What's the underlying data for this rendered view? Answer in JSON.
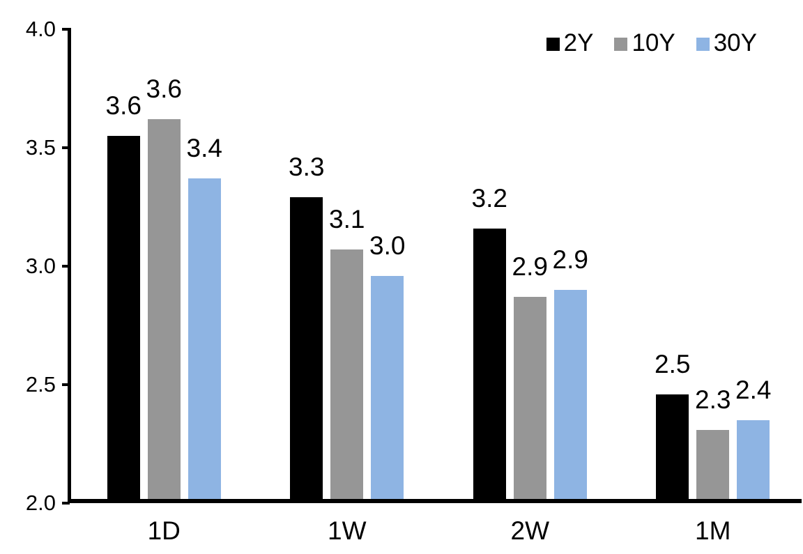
{
  "chart_data": {
    "type": "bar",
    "title": "",
    "xlabel": "",
    "ylabel": "",
    "categories": [
      "1D",
      "1W",
      "2W",
      "1M"
    ],
    "series": [
      {
        "name": "2Y",
        "color": "#000000",
        "values": [
          3.55,
          3.29,
          3.16,
          2.46
        ],
        "labels": [
          "3.6",
          "3.3",
          "3.2",
          "2.5"
        ]
      },
      {
        "name": "10Y",
        "color": "#969696",
        "values": [
          3.62,
          3.07,
          2.87,
          2.31
        ],
        "labels": [
          "3.6",
          "3.1",
          "2.9",
          "2.3"
        ]
      },
      {
        "name": "30Y",
        "color": "#8EB4E3",
        "values": [
          3.37,
          2.96,
          2.9,
          2.35
        ],
        "labels": [
          "3.4",
          "3.0",
          "2.9",
          "2.4"
        ]
      }
    ],
    "ylim": [
      2.0,
      4.0
    ],
    "yticks": [
      {
        "value": 4.0,
        "label": "4.0"
      },
      {
        "value": 3.5,
        "label": "3.5"
      },
      {
        "value": 3.0,
        "label": "3.0"
      },
      {
        "value": 2.5,
        "label": "2.5"
      },
      {
        "value": 2.0,
        "label": "2.0"
      }
    ],
    "grid": false,
    "legend_position": "top-right",
    "background_color": "#FFFFFF",
    "axis_color": "#000000",
    "text_color": "#000000"
  }
}
